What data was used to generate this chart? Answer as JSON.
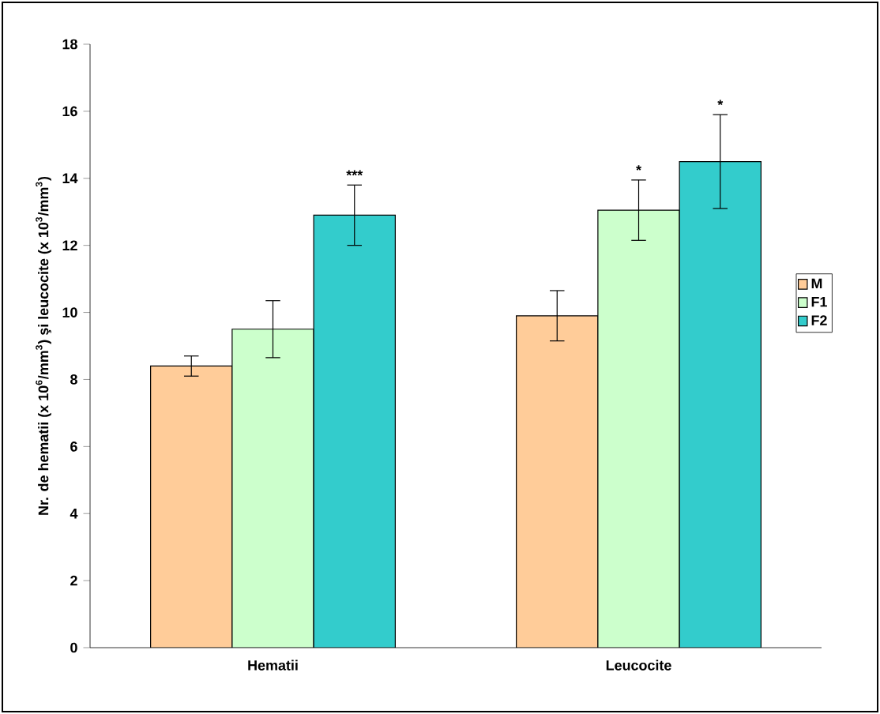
{
  "chart_data": {
    "type": "bar",
    "ylabel": "Nr. de hematii (x 10$^{6}$/mm$^{3}$) şi leucocite (x 10$^{3}$/mm$^{3}$)",
    "categories": [
      "Hematii",
      "Leucocite"
    ],
    "series": [
      {
        "name": "M",
        "color": "#ffcc99",
        "values": [
          8.4,
          9.9
        ],
        "errors": [
          0.3,
          0.75
        ]
      },
      {
        "name": "F1",
        "color": "#ccffcc",
        "values": [
          9.5,
          13.05
        ],
        "errors": [
          0.85,
          0.9
        ]
      },
      {
        "name": "F2",
        "color": "#33cccc",
        "values": [
          12.9,
          14.5
        ],
        "errors": [
          0.9,
          1.4
        ]
      }
    ],
    "ylim": [
      0,
      18
    ],
    "yticks": [
      0,
      2,
      4,
      6,
      8,
      10,
      12,
      14,
      16,
      18
    ],
    "annotations": [
      "***",
      "*",
      "*"
    ],
    "legend": "right",
    "grid": false
  }
}
